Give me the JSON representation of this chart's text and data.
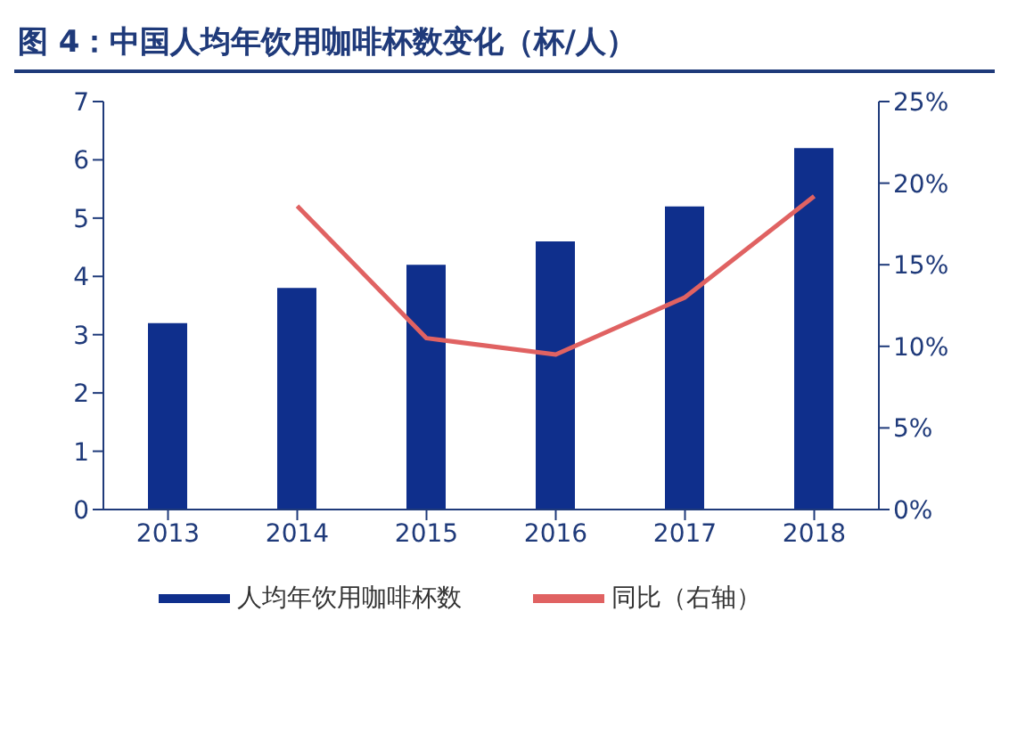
{
  "chart_data": {
    "type": "bar",
    "title": "图 4：中国人均年饮用咖啡杯数变化（杯/人）",
    "categories": [
      "2013",
      "2014",
      "2015",
      "2016",
      "2017",
      "2018"
    ],
    "series": [
      {
        "name": "人均年饮用咖啡杯数",
        "color": "#0f2f8c",
        "values": [
          3.2,
          3.8,
          4.2,
          4.6,
          5.2,
          6.2
        ]
      },
      {
        "name": "同比（右轴）",
        "type": "line",
        "axis": "y2",
        "color": "#e06262",
        "values": [
          null,
          18.6,
          10.5,
          9.5,
          13.0,
          19.2
        ]
      }
    ],
    "ylim": [
      0,
      7
    ],
    "yticks": [
      0,
      1,
      2,
      3,
      4,
      5,
      6,
      7
    ],
    "y2lim": [
      0,
      25
    ],
    "y2ticks": [
      {
        "value": 0,
        "label": "0%"
      },
      {
        "value": 5,
        "label": "5%"
      },
      {
        "value": 10,
        "label": "10%"
      },
      {
        "value": 15,
        "label": "15%"
      },
      {
        "value": 20,
        "label": "20%"
      },
      {
        "value": 25,
        "label": "25%"
      }
    ],
    "grid": false,
    "legend": "bottom",
    "marker": "none",
    "line_style": "solid"
  }
}
